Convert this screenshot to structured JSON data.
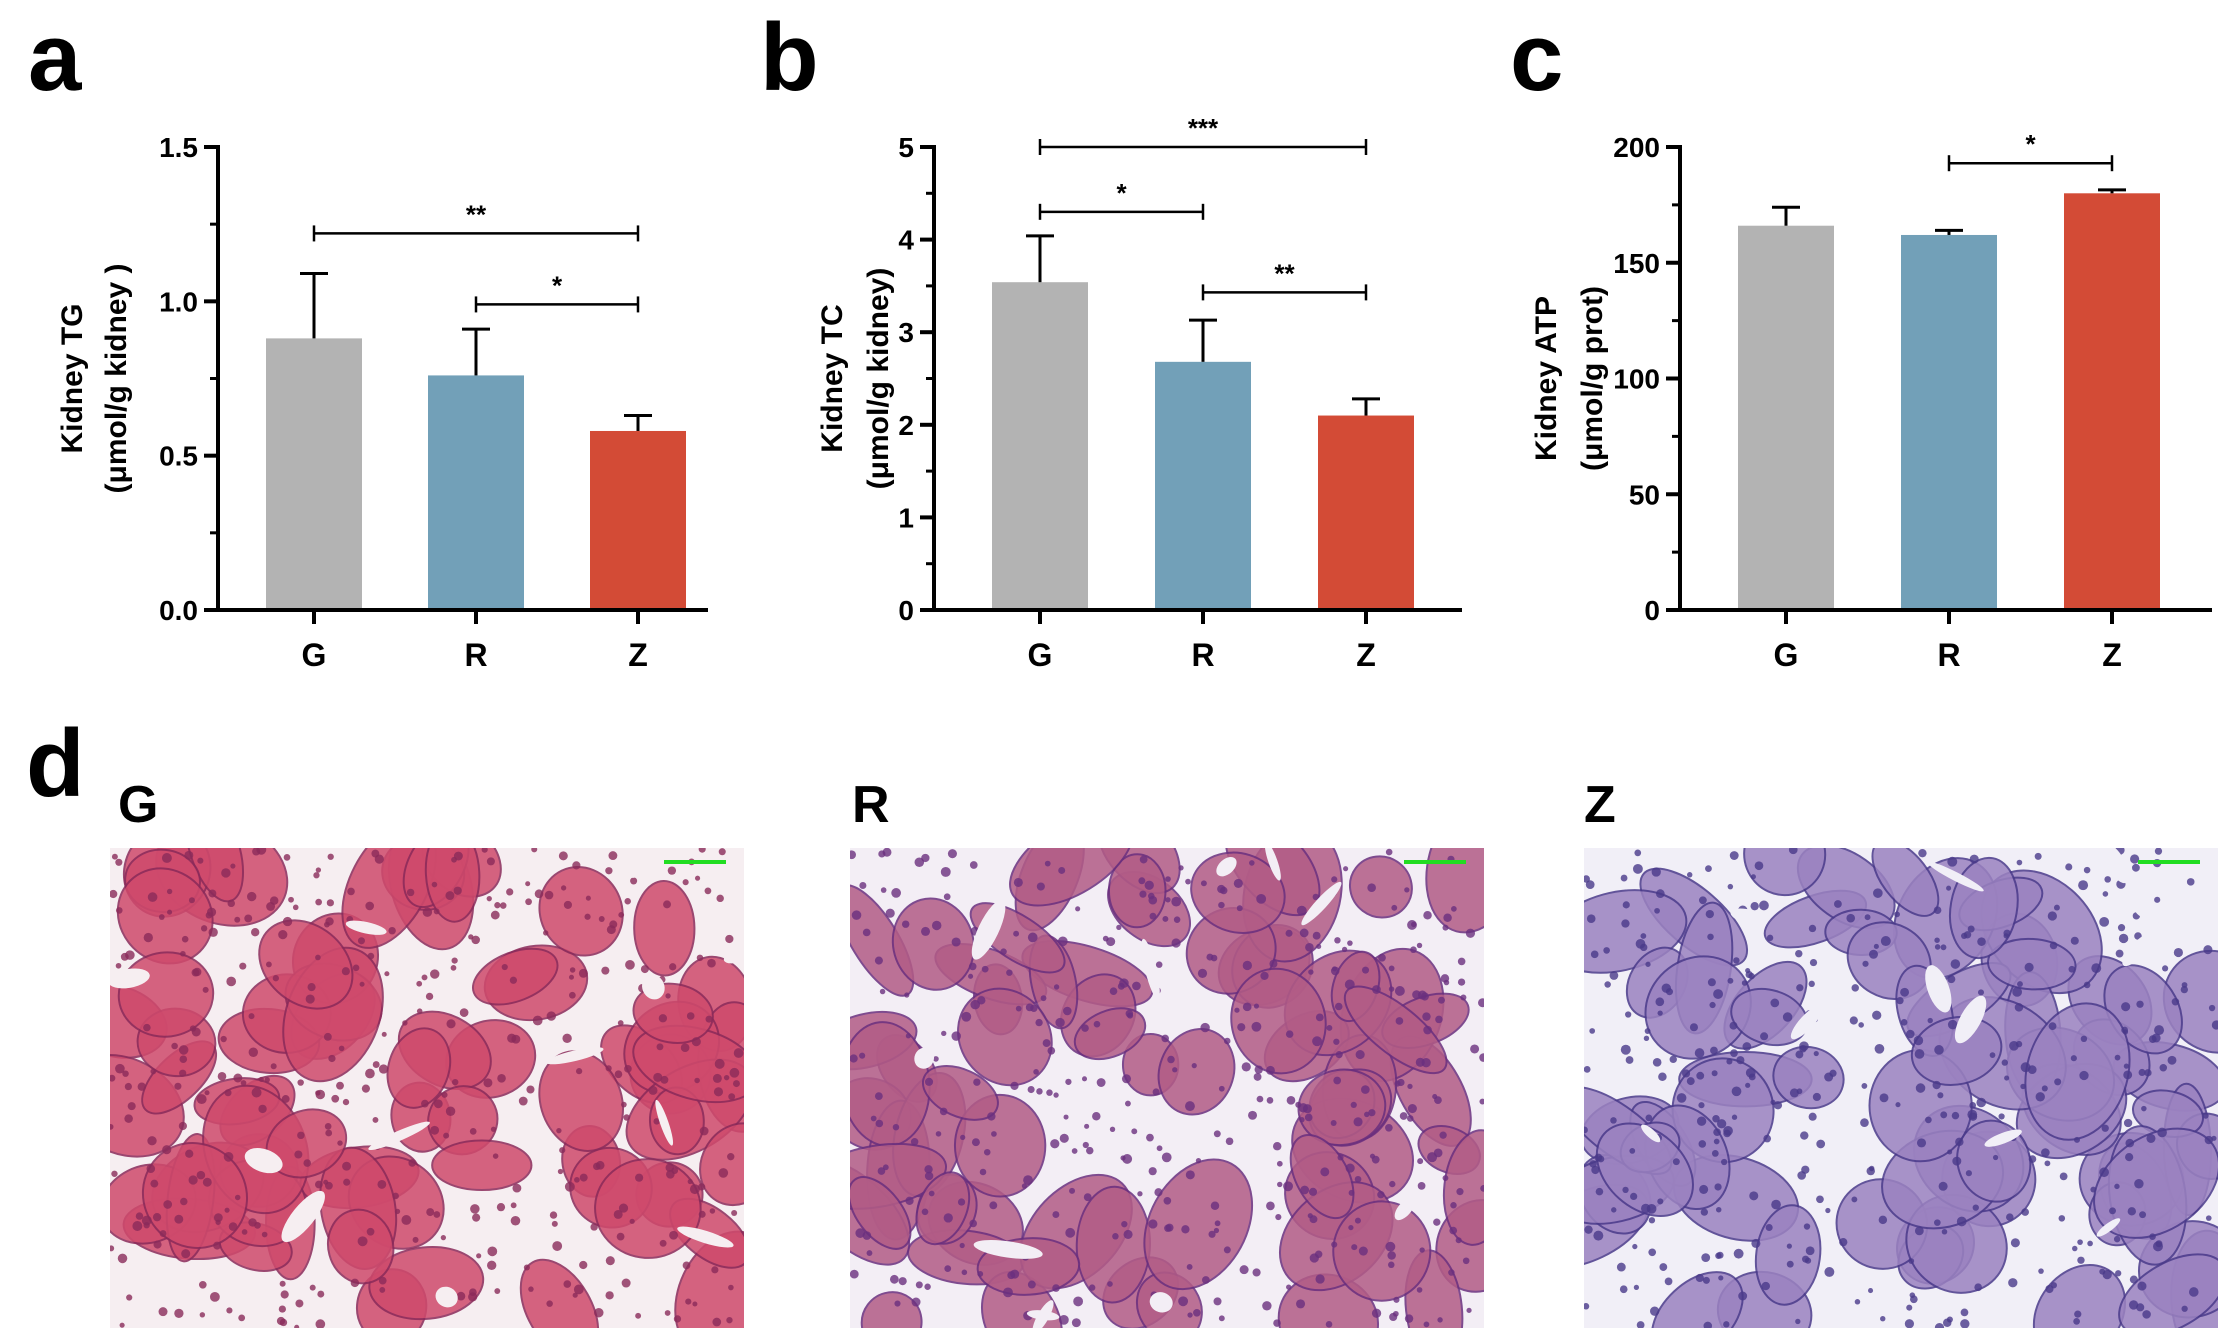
{
  "panels": {
    "a": "a",
    "b": "b",
    "c": "c",
    "d": "d"
  },
  "colors": {
    "G": "#b3b3b3",
    "R": "#72a0b8",
    "Z": "#d34b36",
    "axis": "#000000"
  },
  "chart_data": [
    {
      "type": "bar",
      "panel": "a",
      "categories": [
        "G",
        "R",
        "Z"
      ],
      "values": [
        0.88,
        0.76,
        0.58
      ],
      "errors": [
        0.21,
        0.15,
        0.05
      ],
      "ylim": [
        0,
        1.5
      ],
      "yticks": [
        0,
        0.5,
        1.0,
        1.5
      ],
      "ytick_labels": [
        "0.0",
        "0.5",
        "1.0",
        "1.5"
      ],
      "ylabel": [
        "Kidney  TG",
        "(μmol/g kidney )"
      ],
      "significance": [
        {
          "from": 0,
          "to": 2,
          "y": 1.22,
          "label": "**"
        },
        {
          "from": 1,
          "to": 2,
          "y": 0.99,
          "label": "*"
        }
      ]
    },
    {
      "type": "bar",
      "panel": "b",
      "categories": [
        "G",
        "R",
        "Z"
      ],
      "values": [
        3.54,
        2.68,
        2.1
      ],
      "errors": [
        0.5,
        0.45,
        0.18
      ],
      "ylim": [
        0,
        5
      ],
      "yticks": [
        0,
        1,
        2,
        3,
        4,
        5
      ],
      "ytick_labels": [
        "0",
        "1",
        "2",
        "3",
        "4",
        "5"
      ],
      "ylabel": [
        "Kidney TC",
        "(μmol/g kidney)"
      ],
      "significance": [
        {
          "from": 0,
          "to": 2,
          "y": 5.0,
          "label": "***"
        },
        {
          "from": 0,
          "to": 1,
          "y": 4.3,
          "label": "*"
        },
        {
          "from": 1,
          "to": 2,
          "y": 3.43,
          "label": "**"
        }
      ]
    },
    {
      "type": "bar",
      "panel": "c",
      "categories": [
        "G",
        "R",
        "Z"
      ],
      "values": [
        166,
        162,
        180
      ],
      "errors": [
        8,
        2,
        1.5
      ],
      "ylim": [
        0,
        200
      ],
      "yticks": [
        0,
        50,
        100,
        150,
        200
      ],
      "ytick_labels": [
        "0",
        "50",
        "100",
        "150",
        "200"
      ],
      "ylabel": [
        "Kidney ATP",
        "(μmol/g prot)"
      ],
      "significance": [
        {
          "from": 1,
          "to": 2,
          "y": 193,
          "label": "*"
        }
      ]
    }
  ],
  "histology": [
    {
      "label": "G",
      "tint": "#cf4a6c",
      "cell": "#8a2a5a",
      "bg": "#f6eef1"
    },
    {
      "label": "R",
      "tint": "#b25c86",
      "cell": "#6a2f7e",
      "bg": "#f3eef5"
    },
    {
      "label": "Z",
      "tint": "#9b82c0",
      "cell": "#4a3a8a",
      "bg": "#f1eff7"
    }
  ]
}
